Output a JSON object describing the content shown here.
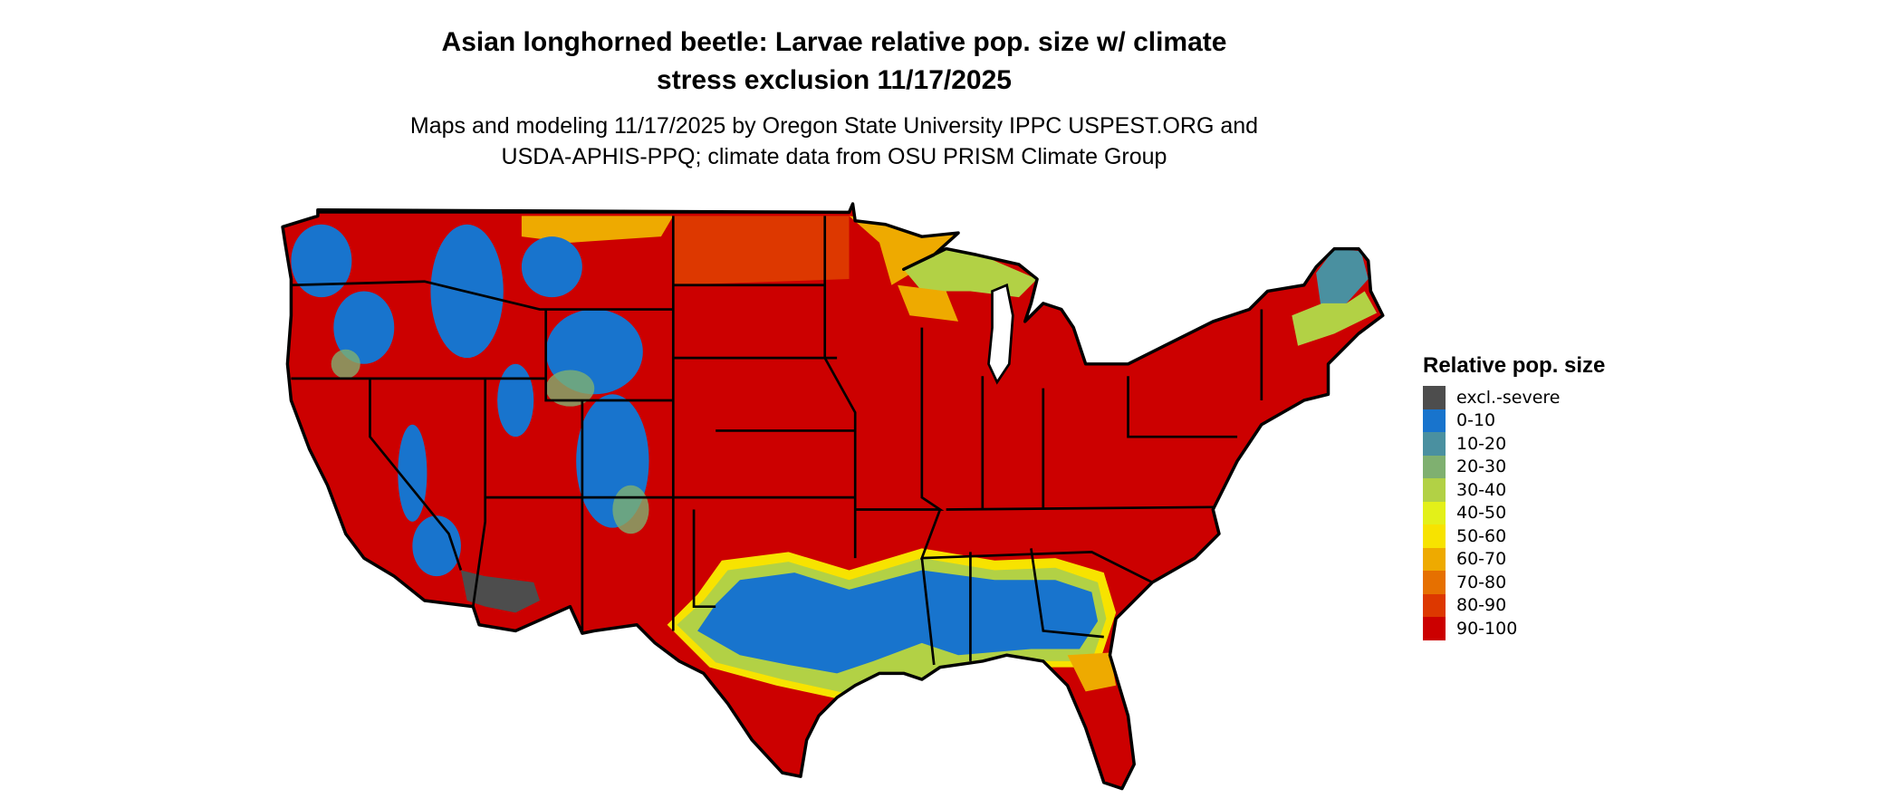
{
  "title": {
    "line1": "Asian longhorned beetle: Larvae relative pop. size w/ climate",
    "line2": "stress exclusion 11/17/2025"
  },
  "subtitle": {
    "line1": "Maps and modeling 11/17/2025 by Oregon State University IPPC USPEST.ORG and",
    "line2": "USDA-APHIS-PPQ; climate data from OSU PRISM Climate Group"
  },
  "map": {
    "region": "Contiguous United States",
    "dominant_class": "90-100",
    "low_classes_regions": [
      "Gulf coast south-east band (0-10)",
      "Rocky Mountain highlands (0-10 to 30-40)",
      "Maine / Upper Michigan (10-40)"
    ],
    "excluded_region": "Southwest desert (excl.-severe)"
  },
  "legend": {
    "title": "Relative pop. size",
    "items": [
      {
        "label": "excl.-severe",
        "color": "#4d4d4d"
      },
      {
        "label": "0-10",
        "color": "#1874cd"
      },
      {
        "label": "10-20",
        "color": "#4a90a0"
      },
      {
        "label": "20-30",
        "color": "#7fb070"
      },
      {
        "label": "30-40",
        "color": "#b2d145"
      },
      {
        "label": "40-50",
        "color": "#e3f019"
      },
      {
        "label": "50-60",
        "color": "#f7e300"
      },
      {
        "label": "60-70",
        "color": "#eeaa00"
      },
      {
        "label": "70-80",
        "color": "#e67000"
      },
      {
        "label": "80-90",
        "color": "#dd3800"
      },
      {
        "label": "90-100",
        "color": "#cc0000"
      }
    ]
  }
}
